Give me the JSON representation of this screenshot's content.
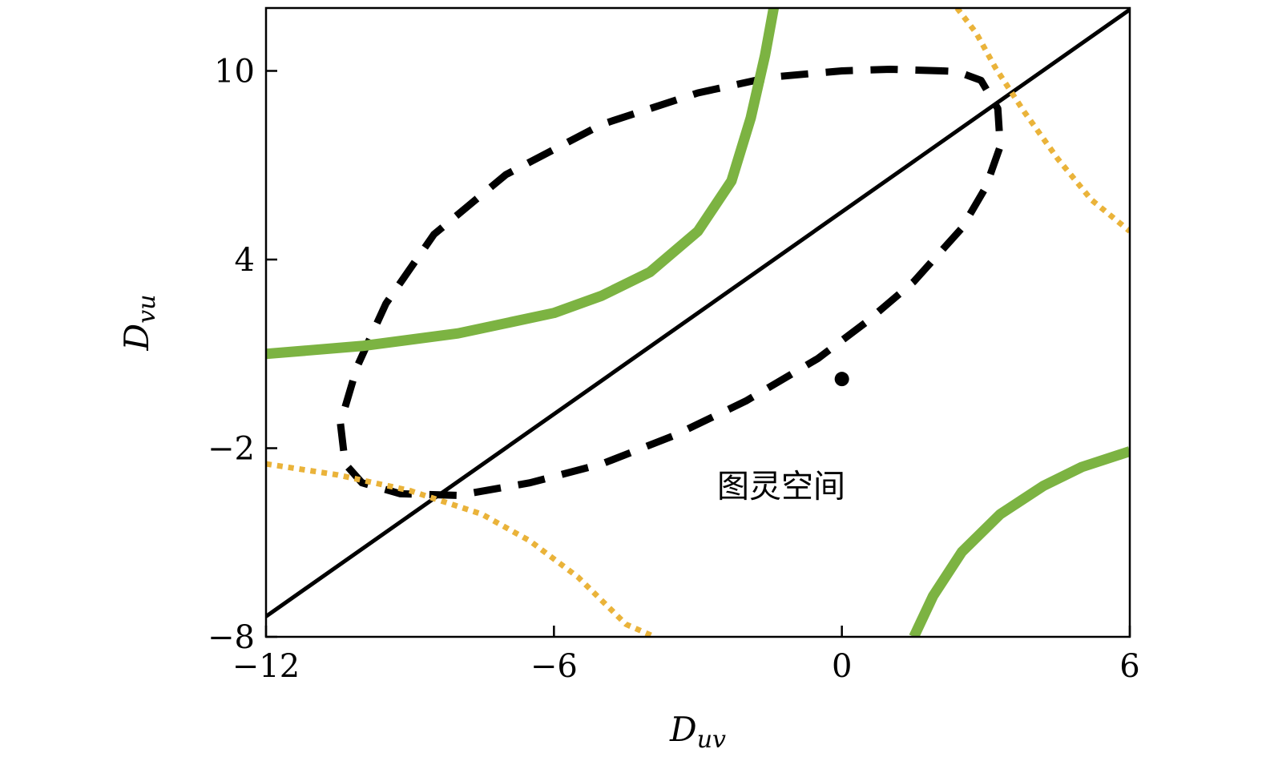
{
  "chart_data": {
    "type": "line",
    "xlabel": "D",
    "xlabel_sub": "uv",
    "ylabel": "D",
    "ylabel_sub": "vu",
    "xlim": [
      -12,
      6
    ],
    "ylim": [
      -8,
      12
    ],
    "xticks": [
      -12,
      -6,
      0,
      6
    ],
    "xtick_labels": [
      "−12",
      "−6",
      "0",
      "6"
    ],
    "yticks": [
      -8,
      -2,
      4,
      10
    ],
    "ytick_labels": [
      "−8",
      "−2",
      "4",
      "10"
    ],
    "annotation": {
      "text": "图灵空间",
      "x": -2.6,
      "y": -3.2
    },
    "point": {
      "x": 0,
      "y": 0.2
    },
    "colors": {
      "solid_green": "#7cb342",
      "dotted_orange": "#eab33a",
      "line": "#000000"
    },
    "series": [
      {
        "style": "straight-solid",
        "points": [
          [
            -12,
            -7.35
          ],
          [
            6,
            11.95
          ]
        ]
      },
      {
        "style": "dashed",
        "points": [
          [
            2.1,
            10.0
          ],
          [
            1.0,
            10.05
          ],
          [
            0.0,
            10.0
          ],
          [
            -1.5,
            9.8
          ],
          [
            -3.0,
            9.3
          ],
          [
            -5.0,
            8.3
          ],
          [
            -7.0,
            6.7
          ],
          [
            -8.5,
            4.8
          ],
          [
            -9.5,
            2.6
          ],
          [
            -10.1,
            0.6
          ],
          [
            -10.45,
            -1.2
          ],
          [
            -10.35,
            -2.5
          ],
          [
            -10.0,
            -3.1
          ],
          [
            -9.2,
            -3.45
          ],
          [
            -8.0,
            -3.5
          ],
          [
            -6.5,
            -3.1
          ],
          [
            -5.0,
            -2.5
          ],
          [
            -3.5,
            -1.6
          ],
          [
            -2.0,
            -0.5
          ],
          [
            -0.5,
            0.85
          ],
          [
            0.5,
            2.0
          ],
          [
            1.5,
            3.3
          ],
          [
            2.5,
            5.0
          ],
          [
            3.0,
            6.3
          ],
          [
            3.3,
            7.6
          ],
          [
            3.25,
            8.8
          ],
          [
            2.9,
            9.7
          ],
          [
            2.4,
            9.98
          ],
          [
            2.1,
            10.0
          ]
        ]
      },
      {
        "style": "thick-green",
        "points": [
          [
            -12,
            1.0
          ],
          [
            -10,
            1.25
          ],
          [
            -8,
            1.65
          ],
          [
            -6,
            2.3
          ],
          [
            -5,
            2.85
          ],
          [
            -4,
            3.6
          ],
          [
            -3,
            4.9
          ],
          [
            -2.3,
            6.5
          ],
          [
            -1.9,
            8.5
          ],
          [
            -1.6,
            10.5
          ],
          [
            -1.42,
            12
          ]
        ]
      },
      {
        "style": "thick-green",
        "points": [
          [
            1.5,
            -8
          ],
          [
            1.9,
            -6.7
          ],
          [
            2.5,
            -5.3
          ],
          [
            3.3,
            -4.1
          ],
          [
            4.2,
            -3.2
          ],
          [
            5.0,
            -2.6
          ],
          [
            6.0,
            -2.1
          ]
        ]
      },
      {
        "style": "dotted-orange",
        "points": [
          [
            -12,
            -2.5
          ],
          [
            -10.5,
            -2.85
          ],
          [
            -9,
            -3.35
          ],
          [
            -7.5,
            -4.1
          ],
          [
            -6.5,
            -4.95
          ],
          [
            -5.5,
            -6.1
          ],
          [
            -4.5,
            -7.6
          ],
          [
            -3.9,
            -8
          ]
        ]
      },
      {
        "style": "dotted-orange",
        "points": [
          [
            2.4,
            12
          ],
          [
            2.8,
            11.2
          ],
          [
            3.2,
            10.1
          ],
          [
            3.8,
            8.7
          ],
          [
            4.5,
            7.2
          ],
          [
            5.2,
            5.9
          ],
          [
            6.0,
            4.9
          ]
        ]
      }
    ]
  }
}
